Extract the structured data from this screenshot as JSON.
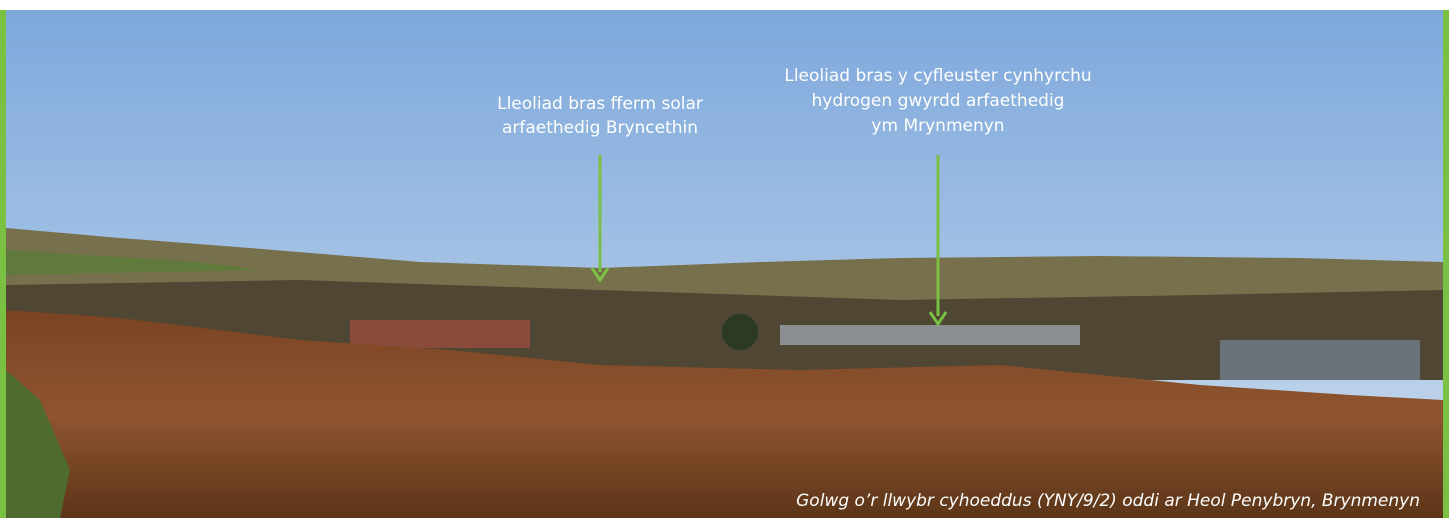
{
  "annotations": [
    {
      "lines": [
        "Lleoliad bras fferm solar",
        "arfaethedig Bryncethin"
      ]
    },
    {
      "lines": [
        "Lleoliad bras y cyfleuster cynhyrchu",
        "hydrogen gwyrdd arfaethedig",
        "ym Mrynmenyn"
      ]
    }
  ],
  "caption": "Golwg o’r llwybr cyhoeddus (YNY/9/2) oddi ar Heol Penybryn, Brynmenyn"
}
